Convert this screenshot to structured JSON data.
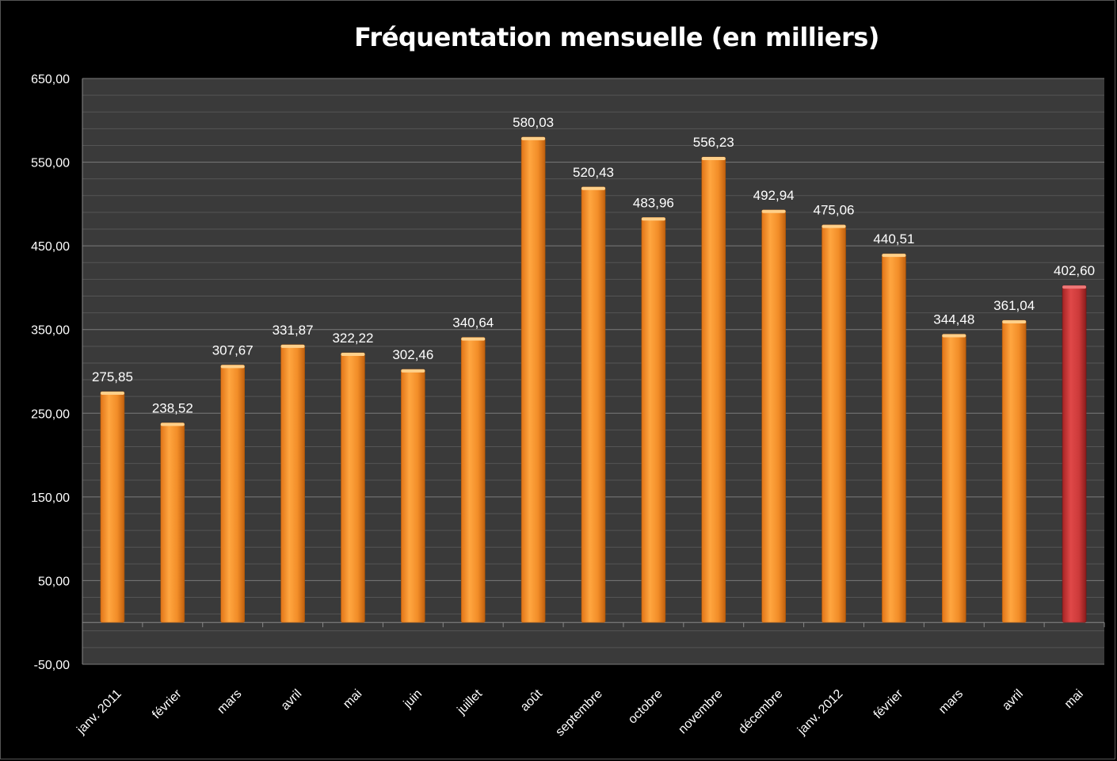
{
  "chart_data": {
    "type": "bar",
    "title": "Fréquentation mensuelle (en milliers)",
    "categories": [
      "janv. 2011",
      "février",
      "mars",
      "avril",
      "mai",
      "juin",
      "juillet",
      "août",
      "septembre",
      "octobre",
      "novembre",
      "décembre",
      "janv. 2012",
      "février",
      "mars",
      "avril",
      "mai"
    ],
    "values": [
      275.85,
      238.52,
      307.67,
      331.87,
      322.22,
      302.46,
      340.64,
      580.03,
      520.43,
      483.96,
      556.23,
      492.94,
      475.06,
      440.51,
      344.48,
      361.04,
      402.6
    ],
    "value_labels": [
      "275,85",
      "238,52",
      "307,67",
      "331,87",
      "322,22",
      "302,46",
      "340,64",
      "580,03",
      "520,43",
      "483,96",
      "556,23",
      "492,94",
      "475,06",
      "440,51",
      "344,48",
      "361,04",
      "402,60"
    ],
    "y_ticks": [
      650,
      550,
      450,
      350,
      250,
      150,
      50,
      -50
    ],
    "y_tick_labels": [
      "650,00",
      "550,00",
      "450,00",
      "350,00",
      "250,00",
      "150,00",
      "50,00",
      "-50,00"
    ],
    "ylim": [
      -50,
      650
    ],
    "grid": true,
    "colors": {
      "bar": "#f5962e",
      "highlight": "#c83a3a",
      "plot_bg": "#3a3a3a",
      "grid": "#6a6a6a",
      "background": "#000000"
    },
    "highlight_index": 16
  }
}
